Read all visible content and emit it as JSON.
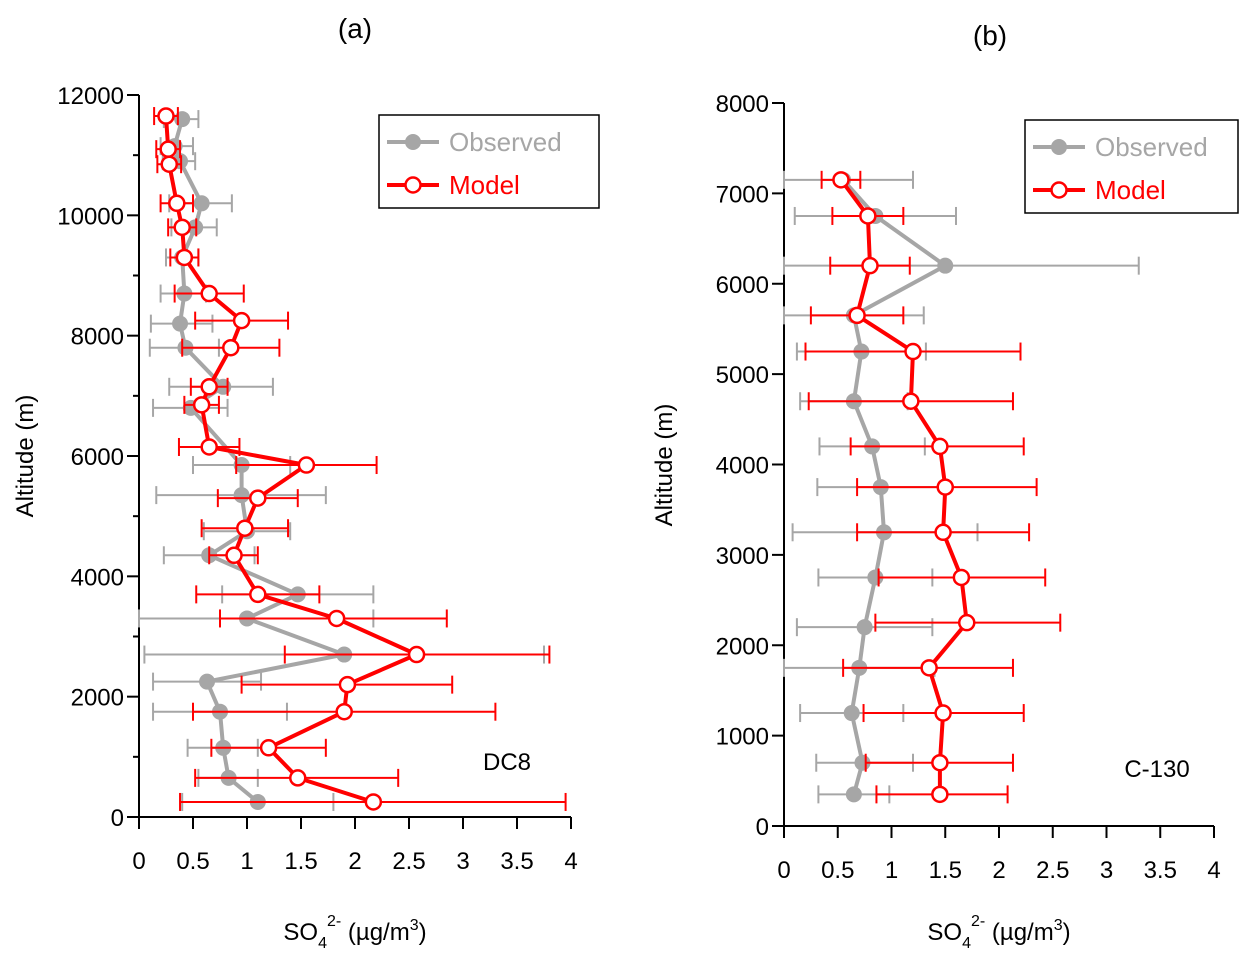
{
  "colors": {
    "observed": "#a6a6a6",
    "model": "#ff0000",
    "axis": "#000000"
  },
  "chart_data": [
    {
      "type": "line",
      "panel_label": "(a)",
      "annotation": "DC8",
      "xlabel": {
        "main": "SO",
        "sub": "4",
        "sup": "2-",
        "unit": " (µg/m",
        "unit_sup": "3",
        "unit_end": ")"
      },
      "ylabel": "Altitude (m)",
      "xlim": [
        0,
        4
      ],
      "ylim": [
        0,
        12000
      ],
      "x_ticks": [
        0,
        0.5,
        1,
        1.5,
        2,
        2.5,
        3,
        3.5,
        4
      ],
      "x_tick_labels": [
        "0",
        "0.5",
        "1",
        "1.5",
        "2",
        "2.5",
        "3",
        "3.5",
        "4"
      ],
      "y_ticks": [
        0,
        2000,
        4000,
        6000,
        8000,
        10000,
        12000
      ],
      "y_tick_labels": [
        "0",
        "2000",
        "4000",
        "6000",
        "8000",
        "10000",
        "12000"
      ],
      "y_minor_ticks": [
        1000,
        3000,
        5000,
        7000,
        9000,
        11000
      ],
      "legend": {
        "position": "top-right",
        "entries": [
          "Observed",
          "Model"
        ]
      },
      "series": [
        {
          "name": "Observed",
          "style": "filled",
          "points": [
            {
              "y": 11600,
              "x": 0.4,
              "lo": 0.23,
              "hi": 0.55
            },
            {
              "y": 11150,
              "x": 0.33,
              "lo": 0.2,
              "hi": 0.5
            },
            {
              "y": 10900,
              "x": 0.38,
              "lo": 0.22,
              "hi": 0.52
            },
            {
              "y": 10200,
              "x": 0.58,
              "lo": 0.28,
              "hi": 0.86
            },
            {
              "y": 9800,
              "x": 0.52,
              "lo": 0.3,
              "hi": 0.72
            },
            {
              "y": 9300,
              "x": 0.4,
              "lo": 0.25,
              "hi": 0.55
            },
            {
              "y": 8700,
              "x": 0.42,
              "lo": 0.2,
              "hi": 0.62
            },
            {
              "y": 8200,
              "x": 0.38,
              "lo": 0.11,
              "hi": 0.68
            },
            {
              "y": 7800,
              "x": 0.43,
              "lo": 0.1,
              "hi": 0.74
            },
            {
              "y": 7150,
              "x": 0.78,
              "lo": 0.28,
              "hi": 1.24
            },
            {
              "y": 6800,
              "x": 0.48,
              "lo": 0.13,
              "hi": 0.82
            },
            {
              "y": 5850,
              "x": 0.95,
              "lo": 0.5,
              "hi": 1.4
            },
            {
              "y": 5350,
              "x": 0.95,
              "lo": 0.16,
              "hi": 1.73
            },
            {
              "y": 4750,
              "x": 1.0,
              "lo": 0.6,
              "hi": 1.4
            },
            {
              "y": 4350,
              "x": 0.65,
              "lo": 0.23,
              "hi": 1.07
            },
            {
              "y": 3700,
              "x": 1.47,
              "lo": 0.77,
              "hi": 2.17
            },
            {
              "y": 3300,
              "x": 1.0,
              "lo": 0.0,
              "hi": 2.17
            },
            {
              "y": 2700,
              "x": 1.9,
              "lo": 0.05,
              "hi": 3.75
            },
            {
              "y": 2250,
              "x": 0.63,
              "lo": 0.13,
              "hi": 1.13
            },
            {
              "y": 1750,
              "x": 0.75,
              "lo": 0.13,
              "hi": 1.37
            },
            {
              "y": 1150,
              "x": 0.78,
              "lo": 0.45,
              "hi": 1.1
            },
            {
              "y": 650,
              "x": 0.83,
              "lo": 0.55,
              "hi": 1.1
            },
            {
              "y": 250,
              "x": 1.1,
              "lo": 0.4,
              "hi": 1.8
            }
          ]
        },
        {
          "name": "Model",
          "style": "open",
          "points": [
            {
              "y": 11650,
              "x": 0.25,
              "lo": 0.14,
              "hi": 0.36
            },
            {
              "y": 11100,
              "x": 0.27,
              "lo": 0.16,
              "hi": 0.38
            },
            {
              "y": 10850,
              "x": 0.28,
              "lo": 0.17,
              "hi": 0.39
            },
            {
              "y": 10200,
              "x": 0.35,
              "lo": 0.2,
              "hi": 0.5
            },
            {
              "y": 9800,
              "x": 0.4,
              "lo": 0.27,
              "hi": 0.53
            },
            {
              "y": 9300,
              "x": 0.42,
              "lo": 0.29,
              "hi": 0.55
            },
            {
              "y": 8700,
              "x": 0.65,
              "lo": 0.33,
              "hi": 0.97
            },
            {
              "y": 8250,
              "x": 0.95,
              "lo": 0.52,
              "hi": 1.38
            },
            {
              "y": 7800,
              "x": 0.85,
              "lo": 0.4,
              "hi": 1.3
            },
            {
              "y": 7150,
              "x": 0.65,
              "lo": 0.48,
              "hi": 0.82
            },
            {
              "y": 6850,
              "x": 0.58,
              "lo": 0.42,
              "hi": 0.74
            },
            {
              "y": 6150,
              "x": 0.65,
              "lo": 0.37,
              "hi": 0.93
            },
            {
              "y": 5850,
              "x": 1.55,
              "lo": 0.9,
              "hi": 2.2
            },
            {
              "y": 5300,
              "x": 1.1,
              "lo": 0.73,
              "hi": 1.47
            },
            {
              "y": 4800,
              "x": 0.98,
              "lo": 0.58,
              "hi": 1.38
            },
            {
              "y": 4350,
              "x": 0.88,
              "lo": 0.65,
              "hi": 1.1
            },
            {
              "y": 3700,
              "x": 1.1,
              "lo": 0.53,
              "hi": 1.67
            },
            {
              "y": 3300,
              "x": 1.83,
              "lo": 0.75,
              "hi": 2.85
            },
            {
              "y": 2700,
              "x": 2.57,
              "lo": 1.35,
              "hi": 3.8
            },
            {
              "y": 2200,
              "x": 1.93,
              "lo": 0.95,
              "hi": 2.9
            },
            {
              "y": 1750,
              "x": 1.9,
              "lo": 0.5,
              "hi": 3.3
            },
            {
              "y": 1150,
              "x": 1.2,
              "lo": 0.67,
              "hi": 1.73
            },
            {
              "y": 650,
              "x": 1.47,
              "lo": 0.52,
              "hi": 2.4
            },
            {
              "y": 250,
              "x": 2.17,
              "lo": 0.38,
              "hi": 3.95
            }
          ]
        }
      ]
    },
    {
      "type": "line",
      "panel_label": "(b)",
      "annotation": "C-130",
      "xlabel": {
        "main": "SO",
        "sub": "4",
        "sup": "2-",
        "unit": " (µg/m",
        "unit_sup": "3",
        "unit_end": ")"
      },
      "ylabel": "Altitude (m)",
      "xlim": [
        0,
        4
      ],
      "ylim": [
        0,
        8000
      ],
      "x_ticks": [
        0,
        0.5,
        1,
        1.5,
        2,
        2.5,
        3,
        3.5,
        4
      ],
      "x_tick_labels": [
        "0",
        "0.5",
        "1",
        "1.5",
        "2",
        "2.5",
        "3",
        "3.5",
        "4"
      ],
      "y_ticks": [
        0,
        1000,
        2000,
        3000,
        4000,
        5000,
        6000,
        7000,
        8000
      ],
      "y_tick_labels": [
        "0",
        "1000",
        "2000",
        "3000",
        "4000",
        "5000",
        "6000",
        "7000",
        "8000"
      ],
      "y_minor_ticks": [],
      "legend": {
        "position": "top-right",
        "entries": [
          "Observed",
          "Model"
        ]
      },
      "series": [
        {
          "name": "Observed",
          "style": "filled",
          "points": [
            {
              "y": 7150,
              "x": 0.55,
              "lo": 0.0,
              "hi": 1.2
            },
            {
              "y": 6750,
              "x": 0.85,
              "lo": 0.1,
              "hi": 1.6
            },
            {
              "y": 6200,
              "x": 1.5,
              "lo": 0.0,
              "hi": 3.3
            },
            {
              "y": 5650,
              "x": 0.65,
              "lo": 0.0,
              "hi": 1.3
            },
            {
              "y": 5250,
              "x": 0.72,
              "lo": 0.12,
              "hi": 1.32
            },
            {
              "y": 4700,
              "x": 0.65,
              "lo": 0.15,
              "hi": 1.15
            },
            {
              "y": 4200,
              "x": 0.82,
              "lo": 0.33,
              "hi": 1.31
            },
            {
              "y": 3750,
              "x": 0.9,
              "lo": 0.31,
              "hi": 1.49
            },
            {
              "y": 3250,
              "x": 0.93,
              "lo": 0.08,
              "hi": 1.8
            },
            {
              "y": 2750,
              "x": 0.85,
              "lo": 0.32,
              "hi": 1.38
            },
            {
              "y": 2200,
              "x": 0.75,
              "lo": 0.12,
              "hi": 1.38
            },
            {
              "y": 1750,
              "x": 0.7,
              "lo": 0.0,
              "hi": 1.4
            },
            {
              "y": 1250,
              "x": 0.63,
              "lo": 0.15,
              "hi": 1.11
            },
            {
              "y": 700,
              "x": 0.73,
              "lo": 0.3,
              "hi": 1.2
            },
            {
              "y": 350,
              "x": 0.65,
              "lo": 0.32,
              "hi": 0.98
            }
          ]
        },
        {
          "name": "Model",
          "style": "open",
          "points": [
            {
              "y": 7150,
              "x": 0.53,
              "lo": 0.35,
              "hi": 0.71
            },
            {
              "y": 6750,
              "x": 0.78,
              "lo": 0.45,
              "hi": 1.11
            },
            {
              "y": 6200,
              "x": 0.8,
              "lo": 0.43,
              "hi": 1.17
            },
            {
              "y": 5650,
              "x": 0.68,
              "lo": 0.25,
              "hi": 1.11
            },
            {
              "y": 5250,
              "x": 1.2,
              "lo": 0.2,
              "hi": 2.2
            },
            {
              "y": 4700,
              "x": 1.18,
              "lo": 0.23,
              "hi": 2.13
            },
            {
              "y": 4200,
              "x": 1.45,
              "lo": 0.62,
              "hi": 2.23
            },
            {
              "y": 3750,
              "x": 1.5,
              "lo": 0.68,
              "hi": 2.35
            },
            {
              "y": 3250,
              "x": 1.48,
              "lo": 0.68,
              "hi": 2.28
            },
            {
              "y": 2750,
              "x": 1.65,
              "lo": 0.88,
              "hi": 2.43
            },
            {
              "y": 2250,
              "x": 1.7,
              "lo": 0.85,
              "hi": 2.57
            },
            {
              "y": 1750,
              "x": 1.35,
              "lo": 0.55,
              "hi": 2.13
            },
            {
              "y": 1250,
              "x": 1.48,
              "lo": 0.74,
              "hi": 2.23
            },
            {
              "y": 700,
              "x": 1.45,
              "lo": 0.76,
              "hi": 2.13
            },
            {
              "y": 350,
              "x": 1.45,
              "lo": 0.86,
              "hi": 2.08
            }
          ]
        }
      ]
    }
  ]
}
